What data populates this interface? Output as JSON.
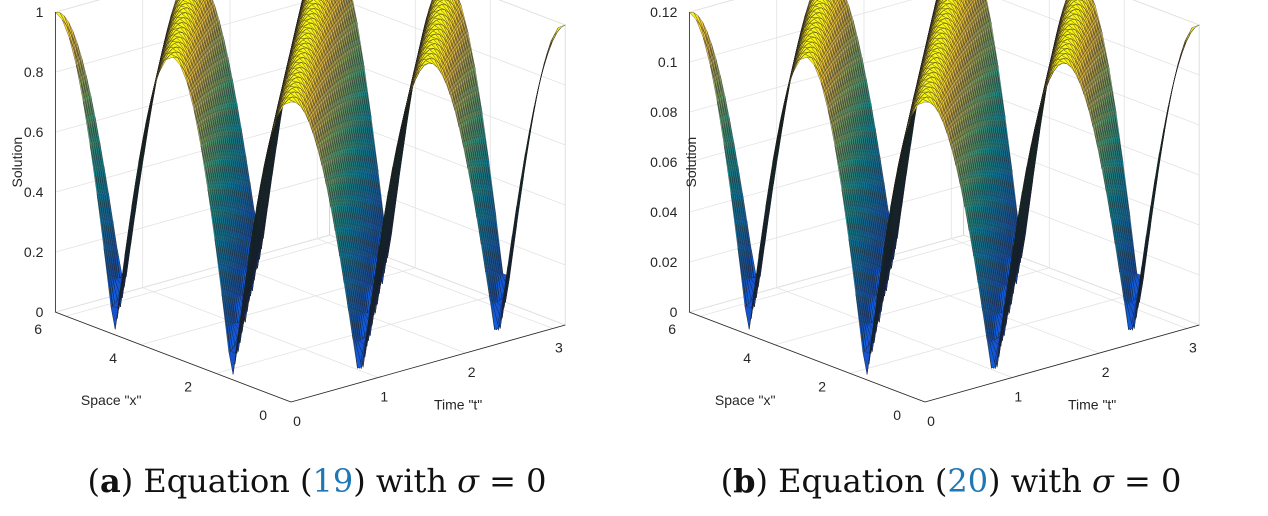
{
  "chart_data": [
    {
      "type": "surface",
      "panel_label": "a",
      "caption_text": "Equation (",
      "caption_ref": "19",
      "caption_suffix": ") with",
      "caption_symbol": "σ",
      "caption_eq": "= 0",
      "xlabel": "Space \"x\"",
      "ylabel": "Time \"t\"",
      "zlabel": "Solution",
      "x_range": [
        0,
        6.283
      ],
      "t_range": [
        0,
        3.1416
      ],
      "z_range": [
        0,
        1
      ],
      "x_ticks": [
        "0",
        "2",
        "4",
        "6"
      ],
      "t_ticks": [
        "0",
        "1",
        "2",
        "3"
      ],
      "z_ticks": [
        "0",
        "0.2",
        "0.4",
        "0.6",
        "0.8",
        "1"
      ],
      "z_tick_values": [
        0,
        0.2,
        0.4,
        0.6,
        0.8,
        1
      ],
      "function": "|cos(x - 2t)|",
      "peak_value": 1,
      "colormap": "parula"
    },
    {
      "type": "surface",
      "panel_label": "b",
      "caption_text": "Equation (",
      "caption_ref": "20",
      "caption_suffix": ") with",
      "caption_symbol": "σ",
      "caption_eq": "= 0",
      "xlabel": "Space \"x\"",
      "ylabel": "Time \"t\"",
      "zlabel": "Solution",
      "x_range": [
        0,
        6.283
      ],
      "t_range": [
        0,
        3.1416
      ],
      "z_range": [
        0,
        0.12
      ],
      "x_ticks": [
        "0",
        "2",
        "4",
        "6"
      ],
      "t_ticks": [
        "0",
        "1",
        "2",
        "3"
      ],
      "z_ticks": [
        "0",
        "0.02",
        "0.04",
        "0.06",
        "0.08",
        "0.1",
        "0.12"
      ],
      "z_tick_values": [
        0,
        0.02,
        0.04,
        0.06,
        0.08,
        0.1,
        0.12
      ],
      "function": "0.12·|cos(x - 2t)|",
      "peak_value": 0.12,
      "colormap": "parula"
    }
  ]
}
